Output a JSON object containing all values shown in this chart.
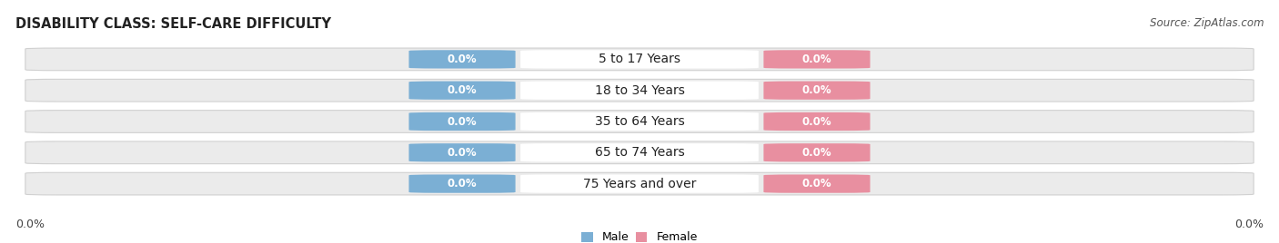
{
  "title": "DISABILITY CLASS: SELF-CARE DIFFICULTY",
  "source": "Source: ZipAtlas.com",
  "categories": [
    "5 to 17 Years",
    "18 to 34 Years",
    "35 to 64 Years",
    "65 to 74 Years",
    "75 Years and over"
  ],
  "male_values": [
    "0.0%",
    "0.0%",
    "0.0%",
    "0.0%",
    "0.0%"
  ],
  "female_values": [
    "0.0%",
    "0.0%",
    "0.0%",
    "0.0%",
    "0.0%"
  ],
  "male_color": "#7BAFD4",
  "female_color": "#E88FA0",
  "bar_bg_color": "#EBEBEB",
  "bar_border_color": "#D0D0D0",
  "center_label_bg": "#FFFFFF",
  "left_tick": "0.0%",
  "right_tick": "0.0%",
  "title_fontsize": 10.5,
  "tick_fontsize": 9,
  "legend_fontsize": 9,
  "value_fontsize": 8.5,
  "cat_fontsize": 10,
  "fig_width": 14.06,
  "fig_height": 2.68,
  "dpi": 100
}
